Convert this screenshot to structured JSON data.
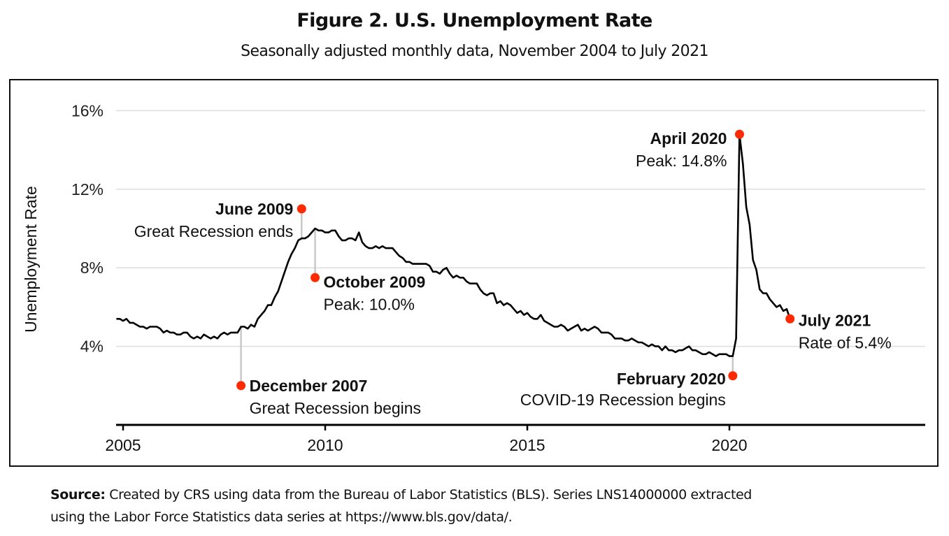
{
  "figure": {
    "title": "Figure 2. U.S. Unemployment Rate",
    "subtitle": "Seasonally adjusted monthly data, November 2004 to July 2021"
  },
  "source": {
    "label": "Source:",
    "text_line1": "Created by CRS using data from the Bureau of Labor Statistics (BLS). Series LNS14000000 extracted",
    "text_line2": "using the Labor Force Statistics data series at https://www.bls.gov/data/."
  },
  "colors": {
    "line": "#000000",
    "marker": "#ff2a00",
    "leader": "#c8c8c8",
    "grid": "#dddddd"
  },
  "chart_data": {
    "type": "line",
    "title": "Figure 2. U.S. Unemployment Rate",
    "subtitle": "Seasonally adjusted monthly data, November 2004 to July 2021",
    "xlabel": "",
    "ylabel": "Unemployment Rate",
    "xlim": [
      2004.833,
      2024.83
    ],
    "ylim": [
      0,
      16
    ],
    "x_ticks": [
      2005,
      2010,
      2015,
      2020
    ],
    "x_tick_labels": [
      "2005",
      "2010",
      "2015",
      "2020"
    ],
    "y_ticks": [
      4,
      8,
      12,
      16
    ],
    "y_tick_labels": [
      "4%",
      "8%",
      "12%",
      "16%"
    ],
    "grid": "horizontal",
    "legend": "none",
    "series": [
      {
        "name": "Unemployment Rate",
        "start": "November 2004",
        "frequency": "monthly",
        "values": [
          5.4,
          5.4,
          5.3,
          5.4,
          5.2,
          5.2,
          5.1,
          5.0,
          5.0,
          4.9,
          5.0,
          5.0,
          5.0,
          4.9,
          4.7,
          4.8,
          4.7,
          4.7,
          4.6,
          4.6,
          4.7,
          4.7,
          4.5,
          4.4,
          4.5,
          4.4,
          4.6,
          4.5,
          4.4,
          4.5,
          4.4,
          4.6,
          4.7,
          4.6,
          4.7,
          4.7,
          4.7,
          5.0,
          5.0,
          4.9,
          5.1,
          5.0,
          5.4,
          5.6,
          5.8,
          6.1,
          6.1,
          6.5,
          6.8,
          7.3,
          7.8,
          8.3,
          8.7,
          9.0,
          9.4,
          9.5,
          9.5,
          9.6,
          9.8,
          10.0,
          9.9,
          9.9,
          9.8,
          9.8,
          9.9,
          9.9,
          9.6,
          9.4,
          9.4,
          9.5,
          9.5,
          9.4,
          9.8,
          9.3,
          9.1,
          9.0,
          9.0,
          9.1,
          9.0,
          9.1,
          9.0,
          9.0,
          9.0,
          8.8,
          8.6,
          8.5,
          8.3,
          8.3,
          8.2,
          8.2,
          8.2,
          8.2,
          8.2,
          8.1,
          7.8,
          7.8,
          7.7,
          7.9,
          8.0,
          7.7,
          7.5,
          7.6,
          7.5,
          7.5,
          7.3,
          7.2,
          7.2,
          7.2,
          6.9,
          6.7,
          6.6,
          6.7,
          6.7,
          6.2,
          6.3,
          6.1,
          6.2,
          6.1,
          5.9,
          5.7,
          5.8,
          5.6,
          5.7,
          5.5,
          5.4,
          5.4,
          5.6,
          5.3,
          5.2,
          5.1,
          5.0,
          5.0,
          5.1,
          5.0,
          4.8,
          4.9,
          5.0,
          5.1,
          4.8,
          4.9,
          4.8,
          4.9,
          5.0,
          4.9,
          4.7,
          4.7,
          4.7,
          4.6,
          4.4,
          4.4,
          4.4,
          4.3,
          4.3,
          4.4,
          4.3,
          4.2,
          4.2,
          4.1,
          4.0,
          4.1,
          4.0,
          4.0,
          3.8,
          4.0,
          3.8,
          3.8,
          3.7,
          3.8,
          3.8,
          3.9,
          4.0,
          3.8,
          3.8,
          3.7,
          3.6,
          3.6,
          3.7,
          3.6,
          3.5,
          3.6,
          3.6,
          3.6,
          3.5,
          3.5,
          4.4,
          14.8,
          13.3,
          11.1,
          10.2,
          8.4,
          7.9,
          6.9,
          6.7,
          6.7,
          6.4,
          6.2,
          6.0,
          6.1,
          5.8,
          5.9,
          5.4
        ]
      }
    ],
    "annotations": [
      {
        "id": "dec-2007",
        "title": "December 2007",
        "text": "Great Recession begins",
        "date": 2007.917,
        "value": 5.0,
        "marker_value": 2.0
      },
      {
        "id": "jun-2009",
        "title": "June 2009",
        "text": "Great Recession ends",
        "date": 2009.417,
        "value": 9.5,
        "marker_value": 11.0
      },
      {
        "id": "oct-2009",
        "title": "October 2009",
        "text": "Peak: 10.0%",
        "date": 2009.75,
        "value": 10.0,
        "marker_value": 7.5
      },
      {
        "id": "apr-2020",
        "title": "April 2020",
        "text": "Peak: 14.8%",
        "date": 2020.25,
        "value": 14.8,
        "marker_value": 14.8
      },
      {
        "id": "feb-2020",
        "title": "February 2020",
        "text": "COVID-19 Recession begins",
        "date": 2020.083,
        "value": 3.5,
        "marker_value": 2.5
      },
      {
        "id": "jul-2021",
        "title": "July 2021",
        "text": "Rate of 5.4%",
        "date": 2021.5,
        "value": 5.4,
        "marker_value": 5.4
      }
    ]
  }
}
